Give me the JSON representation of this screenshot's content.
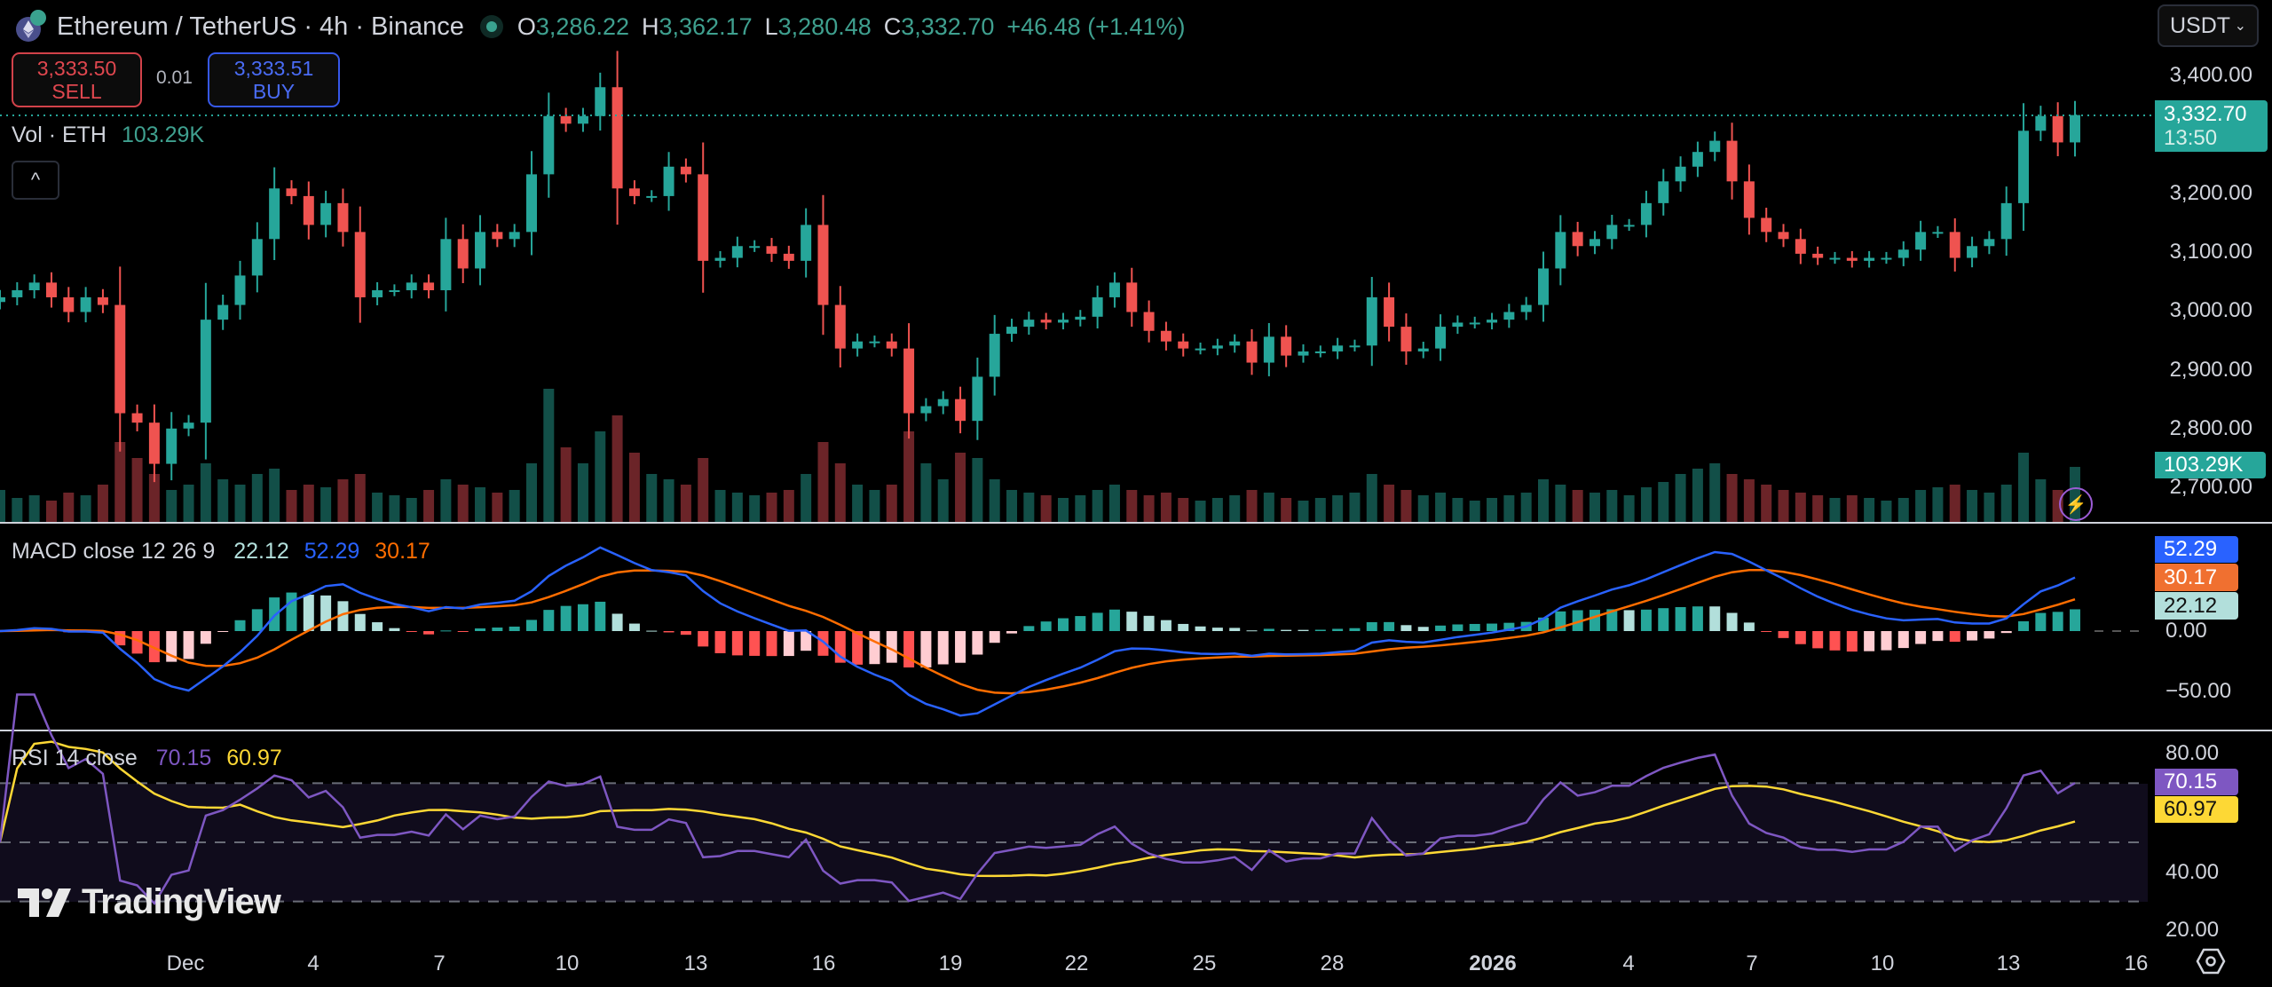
{
  "header": {
    "title": "Ethereum / TetherUS · 4h · Binance",
    "ohlc": [
      {
        "key": "O",
        "value": "3,286.22"
      },
      {
        "key": "H",
        "value": "3,362.17"
      },
      {
        "key": "L",
        "value": "3,280.48"
      },
      {
        "key": "C",
        "value": "3,332.70"
      }
    ],
    "change": "+46.48 (+1.41%)",
    "market_status_icon": "market-open-dot"
  },
  "trade": {
    "sell_price": "3,333.50",
    "sell_label": "SELL",
    "spread": "0.01",
    "buy_price": "3,333.51",
    "buy_label": "BUY"
  },
  "volume_legend": {
    "label": "Vol · ETH",
    "value": "103.29K"
  },
  "collapse_icon": "^",
  "currency": {
    "selected": "USDT"
  },
  "price_axis": [
    "3,400.00",
    "3,200.00",
    "3,100.00",
    "3,000.00",
    "2,900.00",
    "2,800.00",
    "2,700.00"
  ],
  "price_tag": {
    "price": "3,332.70",
    "countdown": "13:50"
  },
  "volume_tag": "103.29K",
  "macd": {
    "label": "MACD close 12 26 9",
    "histogram": "22.12",
    "macd": "52.29",
    "signal": "30.17",
    "axis": [
      "0.00",
      "−50.00"
    ]
  },
  "rsi": {
    "label": "RSI 14 close",
    "rsi": "70.15",
    "ma": "60.97",
    "axis": [
      "80.00",
      "40.00",
      "20.00"
    ]
  },
  "time_axis": [
    "Dec",
    "4",
    "7",
    "10",
    "13",
    "16",
    "19",
    "22",
    "25",
    "28",
    "2026",
    "4",
    "7",
    "10",
    "13",
    "16"
  ],
  "watermark": "TradingView",
  "colors": {
    "up": "#26a69a",
    "down": "#ef5350",
    "vol_up": "#124f48",
    "vol_down": "#6b2428",
    "macd": "#2962ff",
    "signal": "#ff6d00",
    "hist_up_strong": "#26a69a",
    "hist_up_weak": "#b2dfdb",
    "hist_down_strong": "#ff5252",
    "hist_down_weak": "#ffcdd2",
    "rsi": "#7e57c2",
    "rsi_ma": "#fdd835"
  },
  "chart_data": {
    "type": "candlestick",
    "price_ylim": [
      2700,
      3400
    ],
    "rsi_levels": [
      70,
      50,
      30
    ],
    "close": [
      3023,
      3035,
      3048,
      3023,
      2998,
      3023,
      3010,
      2826,
      2810,
      2740,
      2800,
      2810,
      2985,
      3010,
      3060,
      3122,
      3208,
      3195,
      3146,
      3183,
      3134,
      3023,
      3035,
      3035,
      3048,
      3035,
      3122,
      3072,
      3134,
      3122,
      3134,
      3232,
      3331,
      3318,
      3331,
      3380,
      3208,
      3195,
      3195,
      3245,
      3232,
      3085,
      3090,
      3110,
      3110,
      3097,
      3085,
      3146,
      3010,
      2936,
      2948,
      2948,
      2936,
      2826,
      2838,
      2850,
      2813,
      2888,
      2961,
      2973,
      2985,
      2980,
      2985,
      2990,
      3023,
      3048,
      2998,
      2966,
      2948,
      2936,
      2936,
      2941,
      2948,
      2912,
      2956,
      2924,
      2931,
      2931,
      2941,
      2941,
      3023,
      2973,
      2931,
      2936,
      2973,
      2980,
      2980,
      2985,
      2998,
      3010,
      3072,
      3134,
      3110,
      3122,
      3146,
      3146,
      3183,
      3220,
      3245,
      3270,
      3289,
      3220,
      3158,
      3134,
      3122,
      3097,
      3090,
      3090,
      3085,
      3090,
      3090,
      3104,
      3134,
      3134,
      3090,
      3110,
      3122,
      3183,
      3306,
      3331,
      3286.22,
      3332.7
    ],
    "volume_k": [
      60,
      45,
      50,
      40,
      55,
      50,
      70,
      150,
      120,
      90,
      60,
      70,
      110,
      80,
      70,
      90,
      100,
      60,
      70,
      65,
      80,
      90,
      55,
      50,
      45,
      60,
      80,
      70,
      65,
      55,
      60,
      110,
      250,
      140,
      110,
      170,
      200,
      130,
      90,
      80,
      70,
      120,
      60,
      55,
      50,
      55,
      60,
      90,
      150,
      110,
      70,
      60,
      70,
      170,
      110,
      80,
      130,
      120,
      80,
      60,
      55,
      50,
      45,
      50,
      60,
      70,
      60,
      50,
      55,
      45,
      40,
      45,
      50,
      60,
      55,
      45,
      40,
      45,
      50,
      55,
      90,
      70,
      60,
      50,
      55,
      45,
      40,
      45,
      50,
      55,
      80,
      70,
      60,
      55,
      60,
      50,
      65,
      75,
      90,
      100,
      110,
      90,
      80,
      70,
      60,
      55,
      50,
      45,
      50,
      45,
      40,
      45,
      60,
      65,
      70,
      60,
      55,
      70,
      130,
      80,
      60,
      103.29
    ]
  }
}
